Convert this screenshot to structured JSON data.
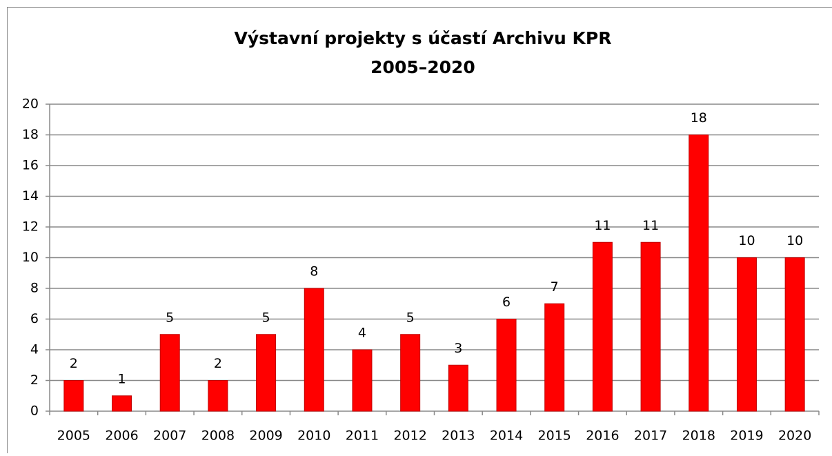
{
  "chart_data": {
    "type": "bar",
    "title": "Výstavní projekty s účastí Archivu KPR",
    "subtitle": "2005–2020",
    "categories": [
      "2005",
      "2006",
      "2007",
      "2008",
      "2009",
      "2010",
      "2011",
      "2012",
      "2013",
      "2014",
      "2015",
      "2016",
      "2017",
      "2018",
      "2019",
      "2020"
    ],
    "values": [
      2,
      1,
      5,
      2,
      5,
      8,
      4,
      5,
      3,
      6,
      7,
      11,
      11,
      18,
      10,
      10
    ],
    "color": "#ff0000",
    "ylim": [
      0,
      20
    ],
    "yticks": [
      0,
      2,
      4,
      6,
      8,
      10,
      12,
      14,
      16,
      18,
      20
    ],
    "grid": true
  }
}
